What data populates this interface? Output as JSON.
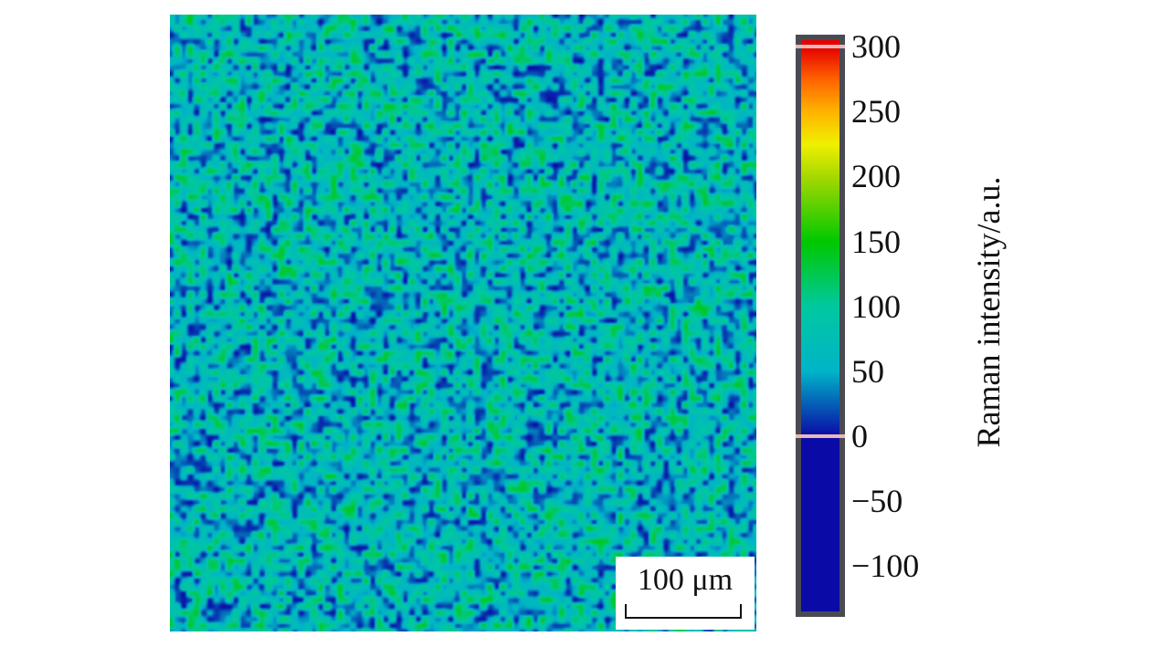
{
  "chart_data": {
    "type": "heatmap",
    "title": "",
    "xlabel": "",
    "ylabel": "",
    "description_of_values": "Raman intensity map",
    "colorbar": {
      "label": "Raman intensity/a.u.",
      "min": -135,
      "max": 305,
      "ticks": [
        {
          "value": 300,
          "label": "300"
        },
        {
          "value": 250,
          "label": "250"
        },
        {
          "value": 200,
          "label": "200"
        },
        {
          "value": 150,
          "label": "150"
        },
        {
          "value": 100,
          "label": "100"
        },
        {
          "value": 50,
          "label": "50"
        },
        {
          "value": 0,
          "label": "0"
        },
        {
          "value": -50,
          "label": "−50"
        },
        {
          "value": -100,
          "label": "−100"
        }
      ],
      "markers": [
        300,
        0
      ],
      "colormap": [
        {
          "value": 0,
          "color": "#0a0aa6"
        },
        {
          "value": 50,
          "color": "#00b4c8"
        },
        {
          "value": 100,
          "color": "#00c8a0"
        },
        {
          "value": 150,
          "color": "#00c800"
        },
        {
          "value": 200,
          "color": "#a6d800"
        },
        {
          "value": 225,
          "color": "#f0f000"
        },
        {
          "value": 250,
          "color": "#ffb400"
        },
        {
          "value": 275,
          "color": "#ff6400"
        },
        {
          "value": 300,
          "color": "#e60000"
        }
      ],
      "below_zero_color": "#0a0aa6"
    },
    "intensity_range_in_map": [
      0,
      150
    ],
    "dominant_intensity": 60,
    "scale_bar": {
      "label": "100 μm"
    }
  }
}
